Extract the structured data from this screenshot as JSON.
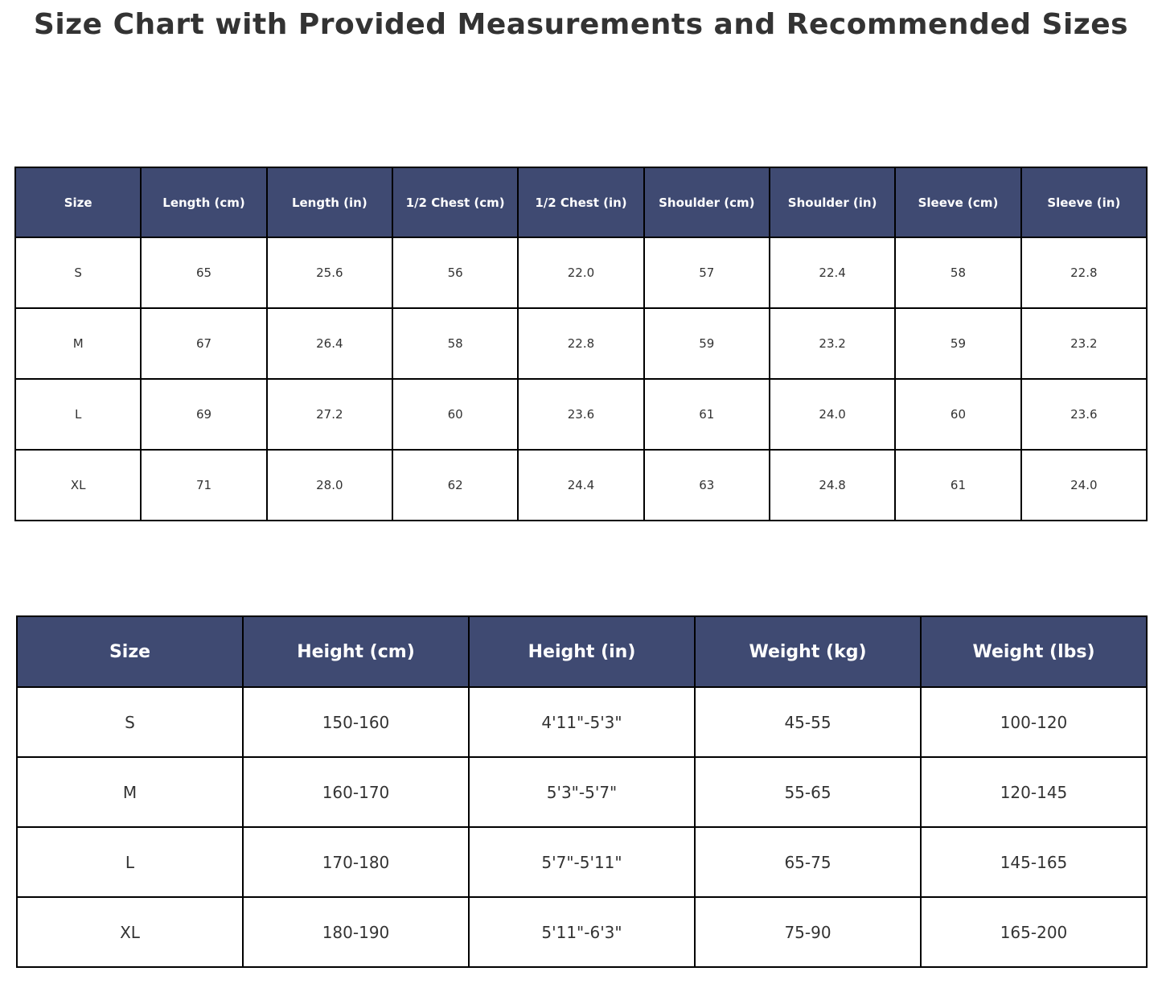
{
  "title": "Size Chart with Provided Measurements and Recommended Sizes",
  "colors": {
    "header_bg": "#3F4A72",
    "header_text": "#FFFFFF",
    "body_text": "#333333",
    "border": "#000000",
    "background": "#FFFFFF"
  },
  "chart_data": [
    {
      "type": "table",
      "name": "provided_measurements",
      "columns": [
        "Size",
        "Length (cm)",
        "Length (in)",
        "1/2 Chest (cm)",
        "1/2 Chest (in)",
        "Shoulder (cm)",
        "Shoulder (in)",
        "Sleeve (cm)",
        "Sleeve (in)"
      ],
      "rows": [
        [
          "S",
          "65",
          "25.6",
          "56",
          "22.0",
          "57",
          "22.4",
          "58",
          "22.8"
        ],
        [
          "M",
          "67",
          "26.4",
          "58",
          "22.8",
          "59",
          "23.2",
          "59",
          "23.2"
        ],
        [
          "L",
          "69",
          "27.2",
          "60",
          "23.6",
          "61",
          "24.0",
          "60",
          "23.6"
        ],
        [
          "XL",
          "71",
          "28.0",
          "62",
          "24.4",
          "63",
          "24.8",
          "61",
          "24.0"
        ]
      ]
    },
    {
      "type": "table",
      "name": "recommended_sizes",
      "columns": [
        "Size",
        "Height (cm)",
        "Height (in)",
        "Weight (kg)",
        "Weight (lbs)"
      ],
      "rows": [
        [
          "S",
          "150-160",
          "4'11\"-5'3\"",
          "45-55",
          "100-120"
        ],
        [
          "M",
          "160-170",
          "5'3\"-5'7\"",
          "55-65",
          "120-145"
        ],
        [
          "L",
          "170-180",
          "5'7\"-5'11\"",
          "65-75",
          "145-165"
        ],
        [
          "XL",
          "180-190",
          "5'11\"-6'3\"",
          "75-90",
          "165-200"
        ]
      ]
    }
  ]
}
